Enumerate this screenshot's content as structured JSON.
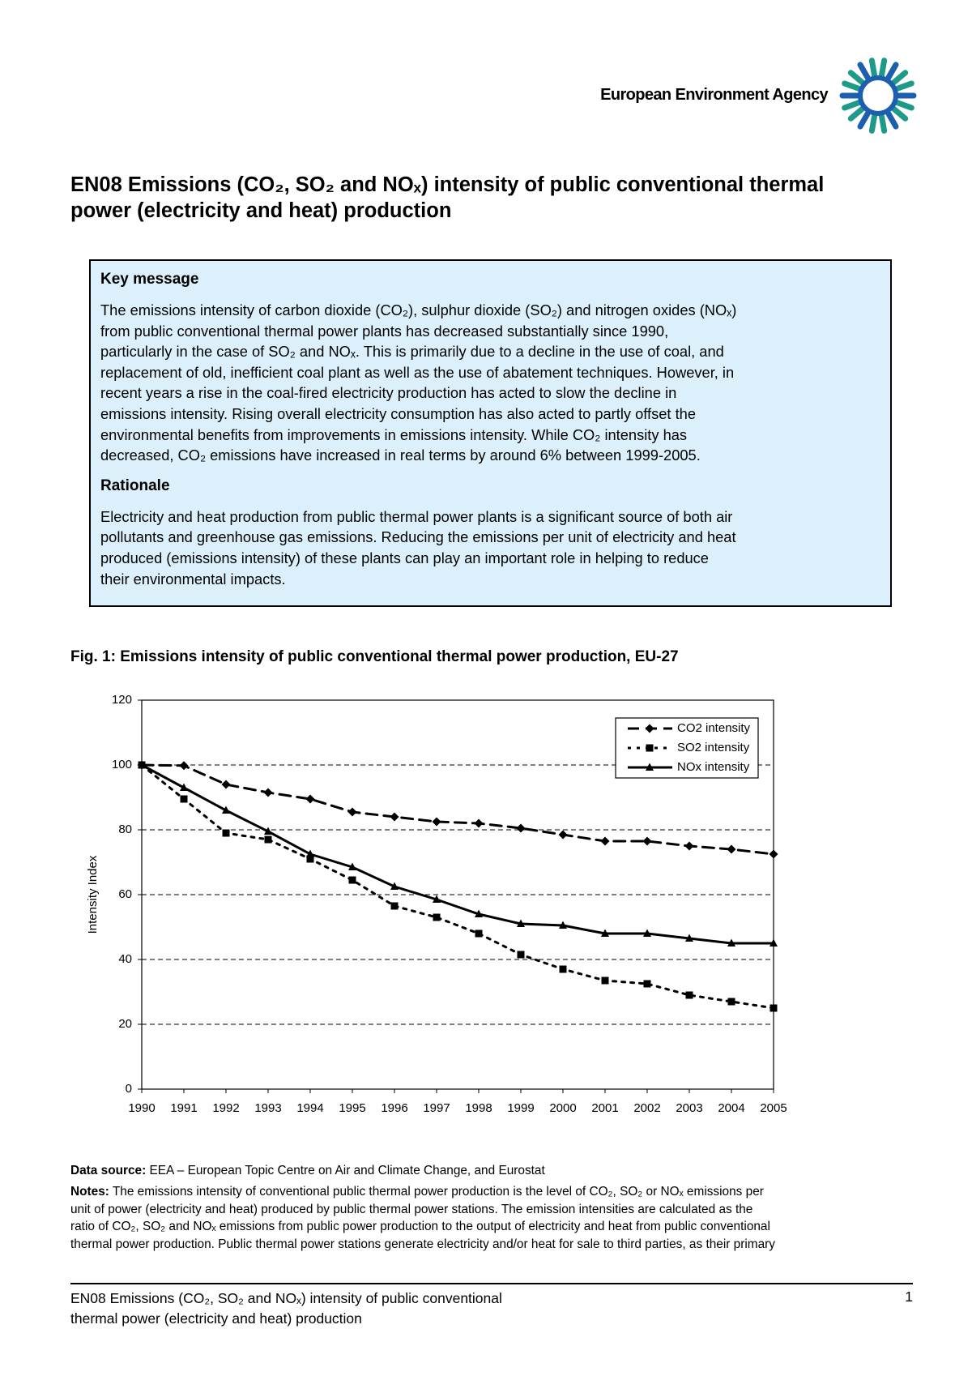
{
  "header": {
    "agency": "European Environment Agency"
  },
  "title": {
    "lines": [
      "EN08 Emissions (CO₂, SO₂ and NOₓ) intensity of public conventional thermal",
      "power (electricity and heat) production"
    ]
  },
  "key_message": {
    "heading": "Key message",
    "lines": [
      "The emissions intensity of carbon dioxide (CO₂), sulphur dioxide (SO₂) and nitrogen oxides (NOₓ)",
      "from public conventional thermal power plants has decreased substantially since 1990,",
      "particularly in the case of SO₂ and NOₓ. This is primarily due to a decline in the use of coal, and",
      "replacement of old, inefficient coal plant as well as the use of abatement techniques. However, in",
      "recent years a rise in the coal-fired electricity production has acted to slow the decline in",
      "emissions intensity. Rising overall electricity consumption has also acted to partly offset the",
      "environmental benefits from improvements in emissions intensity. While CO₂ intensity has",
      "decreased, CO₂ emissions have increased in real terms by around 6% between 1999-2005."
    ]
  },
  "rationale": {
    "heading": "Rationale",
    "lines": [
      "Electricity and heat production from public thermal power plants is a significant source of both air",
      "pollutants and greenhouse gas emissions. Reducing the emissions per unit of electricity and heat",
      "produced (emissions intensity) of these plants can play an important role in helping to reduce",
      "their environmental impacts."
    ]
  },
  "figure": {
    "caption": "Fig. 1: Emissions intensity of public conventional thermal power production, EU-27"
  },
  "chart_data": {
    "type": "line",
    "y_label": "Intensity Index",
    "categories": [
      "1990",
      "1991",
      "1992",
      "1993",
      "1994",
      "1995",
      "1996",
      "1997",
      "1998",
      "1999",
      "2000",
      "2001",
      "2002",
      "2003",
      "2004",
      "2005"
    ],
    "series": [
      {
        "name": "CO2 intensity",
        "color": "#000000",
        "dash": "dashed",
        "marker": "diamond",
        "values": [
          100,
          99.8,
          94,
          91.5,
          89.5,
          85.5,
          84,
          82.5,
          82,
          80.5,
          78.5,
          76.5,
          76.5,
          75,
          74,
          72.5
        ]
      },
      {
        "name": "SO2 intensity",
        "color": "#000000",
        "dash": "dotted",
        "marker": "square",
        "values": [
          100,
          89.5,
          79,
          77,
          71,
          64.5,
          56.5,
          53,
          48,
          41.5,
          37,
          33.5,
          32.5,
          29,
          27,
          25
        ]
      },
      {
        "name": "NOx intensity",
        "color": "#000000",
        "dash": "solid",
        "marker": "triangle",
        "values": [
          100,
          93,
          86,
          79.5,
          72.5,
          68.5,
          62.5,
          58.5,
          54,
          51,
          50.5,
          48,
          48,
          46.5,
          45,
          45
        ]
      }
    ],
    "ylim": [
      0,
      120
    ],
    "yticks": [
      0,
      20,
      40,
      60,
      80,
      100,
      120
    ],
    "grid": true,
    "legend": "upper right"
  },
  "data_source": {
    "label": "Data source:",
    "text": "EEA – European Topic Centre on Air and Climate Change, and Eurostat"
  },
  "notes": {
    "label": "Notes:",
    "lines": [
      "The emissions intensity of conventional public thermal power production is the level of CO₂, SO₂ or NOₓ emissions per",
      "unit of power (electricity and heat) produced by public thermal power stations. The emission intensities are calculated as the",
      "ratio of CO₂, SO₂ and NOₓ emissions from public power production to the output of electricity and heat from public conventional",
      "thermal power production. Public thermal power stations generate electricity and/or heat for sale to third parties, as their primary"
    ]
  },
  "footer": {
    "lines": [
      "EN08 Emissions (CO₂, SO₂ and NOₓ) intensity of public conventional",
      "thermal power (electricity and heat) production"
    ],
    "page": "1"
  }
}
